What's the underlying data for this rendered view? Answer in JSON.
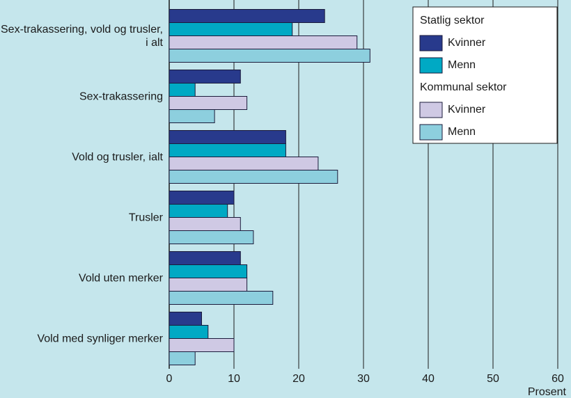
{
  "chart_data": {
    "type": "hbar",
    "categories": [
      "Sex-trakassering, vold og trusler, i alt",
      "Sex-trakassering",
      "Vold og trusler, ialt",
      "Trusler",
      "Vold uten  merker",
      "Vold med synliger merker"
    ],
    "series_groups": [
      {
        "name": "Statlig sektor",
        "series": [
          {
            "name": "Kvinner",
            "color": "#283a8c",
            "values": [
              24,
              11,
              18,
              10,
              11,
              5
            ]
          },
          {
            "name": "Menn",
            "color": "#00a9c4",
            "values": [
              19,
              4,
              18,
              9,
              12,
              6
            ]
          }
        ]
      },
      {
        "name": "Kommunal sektor",
        "series": [
          {
            "name": "Kvinner",
            "color": "#cfc9e4",
            "values": [
              29,
              12,
              23,
              11,
              12,
              10
            ]
          },
          {
            "name": "Menn",
            "color": "#8dcfde",
            "values": [
              31,
              7,
              26,
              13,
              16,
              4
            ]
          }
        ]
      }
    ],
    "xlabel": "Prosent",
    "xlim": [
      0,
      60
    ],
    "xticks": [
      0,
      10,
      20,
      30,
      40,
      50,
      60
    ],
    "grid": true
  }
}
